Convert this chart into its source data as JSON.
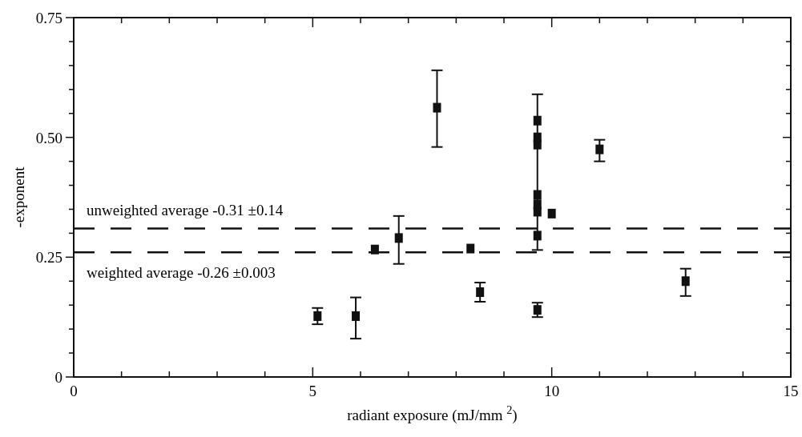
{
  "chart_data": {
    "type": "scatter",
    "xlabel": "radiant exposure (mJ/mm $^{2}$)",
    "ylabel": "-exponent",
    "marker": "square",
    "color": "#111111",
    "x": [
      5.1,
      5.9,
      6.3,
      6.8,
      7.6,
      8.3,
      8.5,
      9.7,
      9.7,
      9.7,
      9.7,
      9.7,
      9.7,
      9.7,
      9.7,
      10.0,
      11.0,
      12.8
    ],
    "values": [
      0.127,
      0.127,
      0.266,
      0.29,
      0.562,
      0.268,
      0.177,
      0.535,
      0.5,
      0.485,
      0.38,
      0.36,
      0.345,
      0.295,
      0.14,
      0.341,
      0.475,
      0.2
    ],
    "errors": [
      0.017,
      [
        0.08,
        0.166
      ],
      null,
      [
        0.236,
        0.336
      ],
      [
        0.48,
        0.64
      ],
      null,
      0.02,
      null,
      null,
      null,
      [
        0.265,
        0.59
      ],
      null,
      null,
      null,
      0.015,
      null,
      [
        0.45,
        0.495
      ],
      [
        0.169,
        0.226
      ]
    ],
    "xlim": [
      0,
      15
    ],
    "xticks": [
      0,
      {
        "value": 1,
        "label": null
      },
      {
        "value": 2,
        "label": null
      },
      {
        "value": 3,
        "label": null
      },
      {
        "value": 4,
        "label": null
      },
      5,
      {
        "value": 6,
        "label": null
      },
      {
        "value": 7,
        "label": null
      },
      {
        "value": 8,
        "label": null
      },
      {
        "value": 9,
        "label": null
      },
      10,
      {
        "value": 11,
        "label": null
      },
      {
        "value": 12,
        "label": null
      },
      {
        "value": 13,
        "label": null
      },
      {
        "value": 14,
        "label": null
      },
      15
    ],
    "ylim": [
      0,
      0.75
    ],
    "yticks": [
      0,
      {
        "value": 0.05,
        "label": null
      },
      {
        "value": 0.1,
        "label": null
      },
      {
        "value": 0.15,
        "label": null
      },
      {
        "value": 0.2,
        "label": null
      },
      0.25,
      {
        "value": 0.3,
        "label": null
      },
      {
        "value": 0.35,
        "label": null
      },
      {
        "value": 0.4,
        "label": null
      },
      {
        "value": 0.45,
        "label": null
      },
      {
        "value": 0.5,
        "label": "0.50"
      },
      {
        "value": 0.55,
        "label": null
      },
      {
        "value": 0.6,
        "label": null
      },
      {
        "value": 0.65,
        "label": null
      },
      {
        "value": 0.7,
        "label": null
      },
      0.75
    ],
    "ref_lines": [
      {
        "axis": "y",
        "value": 0.31,
        "label": "unweighted average -0.31 ±0.14",
        "line_style": "dashed"
      },
      {
        "axis": "y",
        "value": 0.26,
        "label": "weighted average -0.26 ±0.003",
        "line_style": "dashed"
      }
    ],
    "grid": false
  }
}
